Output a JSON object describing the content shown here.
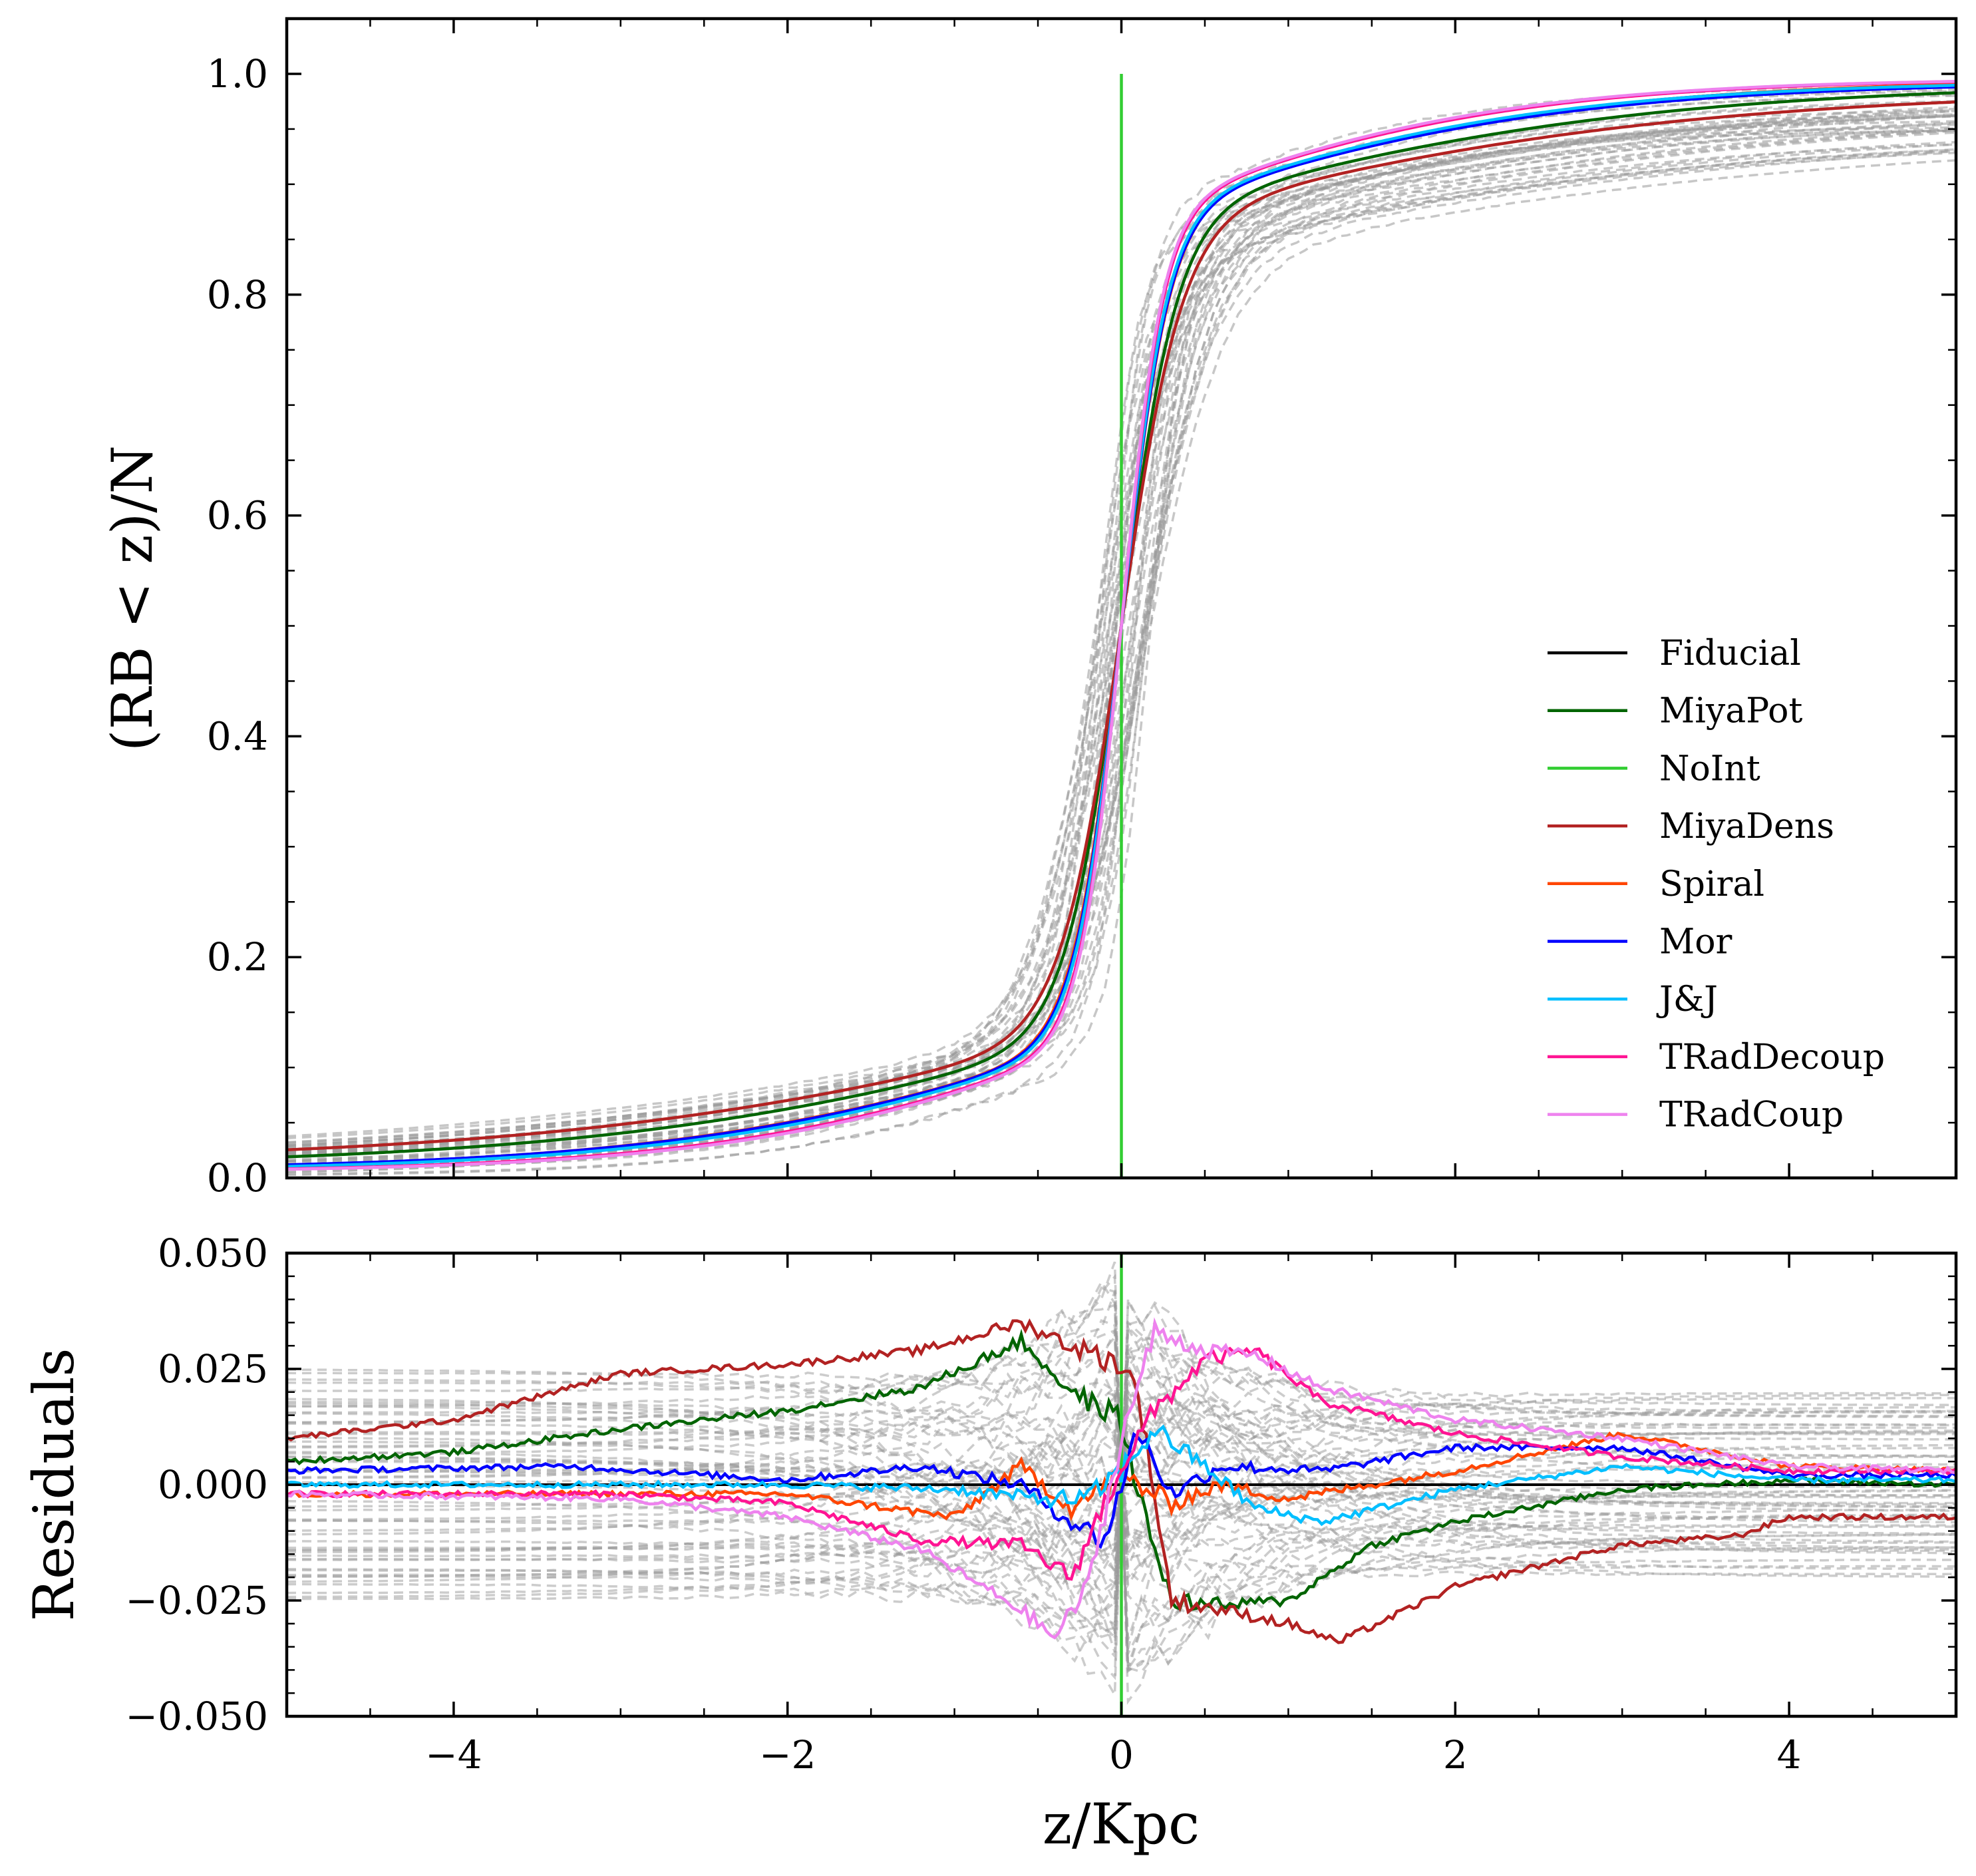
{
  "chart_data": [
    {
      "type": "line",
      "panel": "top",
      "title": "",
      "xlabel": "",
      "ylabel": "(RB < z)/N",
      "xlim": [
        -5,
        5
      ],
      "ylim": [
        0,
        1.05
      ],
      "x_ticks": [
        -4,
        -2,
        0,
        2,
        4
      ],
      "y_ticks": [
        0.0,
        0.2,
        0.4,
        0.6,
        0.8,
        1.0
      ],
      "y_tick_labels": [
        "0.0",
        "0.2",
        "0.4",
        "0.6",
        "0.8",
        "1.0"
      ],
      "grid": false,
      "legend_location": "lower-right",
      "background_curves": {
        "style": "dashed",
        "color": "#999999",
        "description_count": 40
      },
      "series": [
        {
          "name": "Fiducial",
          "color": "#000000",
          "w": 0.4,
          "s": 0.0
        },
        {
          "name": "MiyaPot",
          "color": "#006400",
          "w": 0.48,
          "s": 0.0
        },
        {
          "name": "NoInt",
          "color": "#32cd32",
          "w": 0.0,
          "s": 0.0
        },
        {
          "name": "MiyaDens",
          "color": "#b22222",
          "w": 0.52,
          "s": 0.0
        },
        {
          "name": "Spiral",
          "color": "#ff4500",
          "w": 0.41,
          "s": 0.0
        },
        {
          "name": "Mor",
          "color": "#0000ff",
          "w": 0.4,
          "s": 0.0
        },
        {
          "name": "J&J",
          "color": "#00bfff",
          "w": 0.39,
          "s": 0.0
        },
        {
          "name": "TRadDecoup",
          "color": "#ff1493",
          "w": 0.36,
          "s": 0.0
        },
        {
          "name": "TRadCoup",
          "color": "#ee82ee",
          "w": 0.35,
          "s": 0.0
        }
      ]
    },
    {
      "type": "line",
      "panel": "bottom",
      "title": "",
      "xlabel": "z/Kpc",
      "ylabel": "Residuals",
      "xlim": [
        -5,
        5
      ],
      "ylim": [
        -0.05,
        0.05
      ],
      "x_ticks": [
        -4,
        -2,
        0,
        2,
        4
      ],
      "x_tick_labels": [
        "−4",
        "−2",
        "0",
        "2",
        "4"
      ],
      "y_ticks": [
        -0.05,
        -0.025,
        0.0,
        0.025,
        0.05
      ],
      "y_tick_labels": [
        "−0.050",
        "−0.025",
        "0.000",
        "0.025",
        "0.050"
      ],
      "grid": false,
      "series": [
        {
          "name": "Fiducial",
          "color": "#000000",
          "x": [
            -5,
            5
          ],
          "y": [
            0.0,
            0.0
          ]
        },
        {
          "name": "MiyaPot",
          "color": "#006400",
          "x": [
            -5,
            -4,
            -3,
            -2,
            -1.2,
            -0.6,
            -0.3,
            0,
            0.1,
            0.3,
            0.6,
            1,
            1.5,
            2,
            3,
            4,
            5
          ],
          "y": [
            0.005,
            0.007,
            0.012,
            0.016,
            0.021,
            0.031,
            0.02,
            0.014,
            -0.002,
            -0.025,
            -0.026,
            -0.025,
            -0.013,
            -0.008,
            -0.001,
            0.001,
            0.0
          ]
        },
        {
          "name": "NoInt",
          "color": "#32cd32",
          "x": [
            0,
            0
          ],
          "y": [
            -0.05,
            0.05
          ]
        },
        {
          "name": "MiyaDens",
          "color": "#b22222",
          "x": [
            -5,
            -4,
            -3,
            -2,
            -1.2,
            -0.6,
            -0.3,
            0,
            0.1,
            0.3,
            0.6,
            1,
            1.3,
            2,
            3,
            3.7,
            4,
            5
          ],
          "y": [
            0.01,
            0.014,
            0.024,
            0.026,
            0.029,
            0.035,
            0.03,
            0.026,
            0.02,
            -0.025,
            -0.027,
            -0.03,
            -0.034,
            -0.022,
            -0.013,
            -0.011,
            -0.007,
            -0.007
          ]
        },
        {
          "name": "Spiral",
          "color": "#ff4500",
          "x": [
            -5,
            -3,
            -2,
            -1,
            -0.6,
            -0.3,
            0,
            0.3,
            0.6,
            1,
            2,
            3,
            4,
            5
          ],
          "y": [
            -0.002,
            -0.002,
            -0.002,
            -0.007,
            0.004,
            -0.005,
            0.002,
            -0.004,
            0.0,
            -0.003,
            0.003,
            0.011,
            0.004,
            0.003
          ]
        },
        {
          "name": "Mor",
          "color": "#0000ff",
          "x": [
            -5,
            -3.3,
            -2,
            -1.2,
            -0.6,
            -0.3,
            -0.1,
            0.1,
            0.3,
            0.6,
            1.2,
            2,
            3,
            4,
            5
          ],
          "y": [
            0.003,
            0.004,
            0.001,
            0.004,
            0.0,
            -0.008,
            -0.012,
            0.012,
            -0.002,
            0.004,
            0.003,
            0.008,
            0.008,
            0.002,
            0.002
          ]
        },
        {
          "name": "J&J",
          "color": "#00bfff",
          "x": [
            -5,
            -3,
            -2,
            -1,
            -0.5,
            -0.2,
            0,
            0.2,
            0.5,
            0.8,
            1.2,
            2,
            3,
            4,
            5
          ],
          "y": [
            0.0,
            0.0,
            0.0,
            -0.001,
            -0.003,
            -0.003,
            0.003,
            0.012,
            0.004,
            -0.005,
            -0.008,
            -0.001,
            0.004,
            0.001,
            0.001
          ]
        },
        {
          "name": "TRadDecoup",
          "color": "#ff1493",
          "x": [
            -5,
            -3,
            -2,
            -1.2,
            -0.6,
            -0.3,
            0,
            0.2,
            0.5,
            0.8,
            1.2,
            2,
            3,
            4,
            5
          ],
          "y": [
            -0.002,
            -0.002,
            -0.004,
            -0.012,
            -0.013,
            -0.02,
            0.004,
            0.016,
            0.027,
            0.029,
            0.018,
            0.011,
            0.006,
            0.003,
            0.003
          ]
        },
        {
          "name": "TRadCoup",
          "color": "#ee82ee",
          "x": [
            -5,
            -3,
            -2,
            -1.2,
            -0.6,
            -0.4,
            -0.2,
            0,
            0.2,
            0.5,
            0.8,
            1.2,
            2,
            3,
            4,
            5
          ],
          "y": [
            -0.002,
            -0.003,
            -0.007,
            -0.014,
            -0.027,
            -0.033,
            -0.022,
            0.01,
            0.033,
            0.029,
            0.028,
            0.021,
            0.014,
            0.01,
            0.004,
            0.003
          ]
        }
      ]
    }
  ]
}
